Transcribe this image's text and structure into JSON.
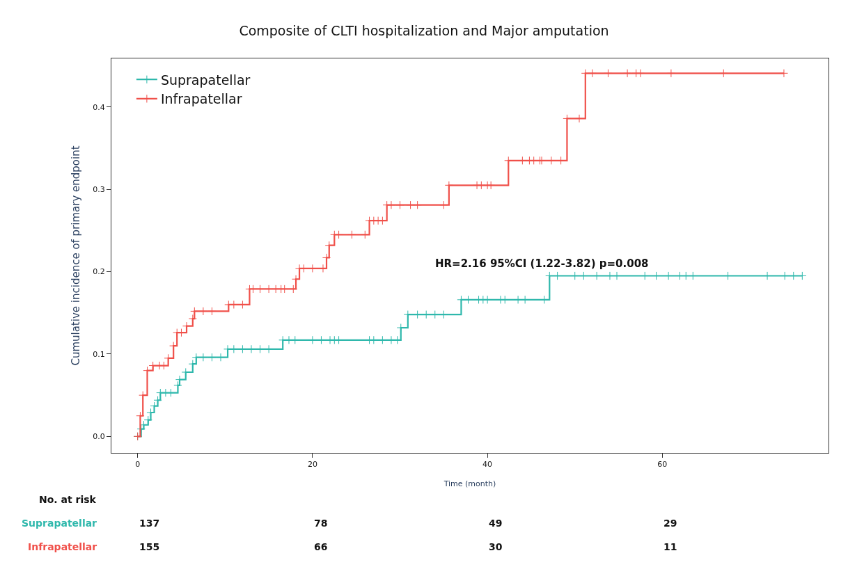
{
  "chart_data": {
    "type": "step",
    "title": "Composite of CLTI hospitalization and Major amputation",
    "xlabel": "Time (month)",
    "ylabel": "Cumulative incidence of primary endpoint",
    "xlim": [
      -3,
      79
    ],
    "xticks": [
      0,
      20,
      40,
      60
    ],
    "ylim": [
      -0.02,
      0.459
    ],
    "yticks": [
      {
        "value": 0,
        "label": "0.0"
      },
      {
        "value": 0.1,
        "label": "0.1"
      },
      {
        "value": 0.2,
        "label": "0.2"
      },
      {
        "value": 0.3,
        "label": "0.3"
      },
      {
        "value": 0.4,
        "label": "0.4"
      }
    ],
    "legend": "top left",
    "marker": "cross",
    "line_style": "solid",
    "series": [
      {
        "name": "Suprapatellar",
        "color": "#2fb8ac",
        "x": [
          0,
          0.4,
          0.7,
          1.2,
          1.5,
          1.9,
          2.3,
          2.6,
          3.2,
          3.8,
          4.6,
          4.8,
          5.5,
          6.3,
          6.7,
          7.5,
          8.5,
          9.5,
          10.3,
          11,
          12,
          13,
          14,
          15,
          16.6,
          17.3,
          18,
          20,
          21,
          22,
          22.5,
          23,
          26.5,
          27,
          28,
          29,
          29.7,
          30.1,
          30.9,
          32,
          33,
          34,
          35,
          37.0,
          37.8,
          39,
          39.5,
          40,
          41.5,
          42,
          43.5,
          44.3,
          46.5,
          47.1,
          48,
          50,
          51,
          52.5,
          54,
          54.8,
          58,
          59.3,
          60.7,
          62,
          62.7,
          63.5,
          67.5,
          72,
          74,
          75,
          76
        ],
        "values": [
          0,
          0.009,
          0.014,
          0.02,
          0.029,
          0.037,
          0.044,
          0.053,
          0.053,
          0.053,
          0.062,
          0.069,
          0.078,
          0.088,
          0.096,
          0.096,
          0.096,
          0.096,
          0.106,
          0.106,
          0.106,
          0.106,
          0.106,
          0.106,
          0.117,
          0.117,
          0.117,
          0.117,
          0.117,
          0.117,
          0.117,
          0.117,
          0.117,
          0.117,
          0.117,
          0.117,
          0.117,
          0.132,
          0.148,
          0.148,
          0.148,
          0.148,
          0.148,
          0.166,
          0.166,
          0.166,
          0.166,
          0.166,
          0.166,
          0.166,
          0.166,
          0.166,
          0.166,
          0.195,
          0.195,
          0.195,
          0.195,
          0.195,
          0.195,
          0.195,
          0.195,
          0.195,
          0.195,
          0.195,
          0.195,
          0.195,
          0.195,
          0.195,
          0.195,
          0.195,
          0.195
        ]
      },
      {
        "name": "Infrapatellar",
        "color": "#f0504a",
        "x": [
          0,
          0.3,
          0.6,
          1.1,
          1.75,
          2.5,
          3.0,
          3.5,
          4.1,
          4.5,
          5.0,
          5.6,
          6.3,
          6.5,
          7.5,
          8.5,
          10.4,
          11,
          12,
          12.8,
          13.2,
          14,
          15,
          15.8,
          16.4,
          16.8,
          17.8,
          18.1,
          18.5,
          19,
          20,
          21.2,
          21.6,
          21.9,
          22.5,
          23,
          24.5,
          26,
          26.5,
          27,
          27.5,
          28,
          28.5,
          29,
          30,
          31.2,
          32,
          35,
          35.6,
          38.8,
          39.3,
          40,
          40.4,
          42.4,
          44,
          44.8,
          45.3,
          46,
          46.2,
          47.3,
          48.4,
          49.1,
          50.5,
          51.2,
          52,
          53.8,
          56,
          57,
          57.5,
          61,
          67,
          73.9
        ],
        "values": [
          0,
          0.025,
          0.05,
          0.08,
          0.086,
          0.086,
          0.086,
          0.095,
          0.11,
          0.126,
          0.126,
          0.134,
          0.143,
          0.152,
          0.152,
          0.152,
          0.16,
          0.16,
          0.16,
          0.179,
          0.179,
          0.179,
          0.179,
          0.179,
          0.179,
          0.179,
          0.179,
          0.191,
          0.204,
          0.204,
          0.204,
          0.204,
          0.217,
          0.232,
          0.245,
          0.245,
          0.245,
          0.245,
          0.262,
          0.262,
          0.262,
          0.262,
          0.281,
          0.281,
          0.281,
          0.281,
          0.281,
          0.281,
          0.305,
          0.305,
          0.305,
          0.305,
          0.305,
          0.335,
          0.335,
          0.335,
          0.335,
          0.335,
          0.335,
          0.335,
          0.335,
          0.386,
          0.386,
          0.441,
          0.441,
          0.441,
          0.441,
          0.441,
          0.441,
          0.441,
          0.441,
          0.441
        ]
      }
    ],
    "annotations": [
      "HR=2.16 95%CI (1.22-3.82) p=0.008",
      "No. at risk",
      "137",
      "78",
      "49",
      "29",
      "155",
      "66",
      "30",
      "11"
    ]
  }
}
